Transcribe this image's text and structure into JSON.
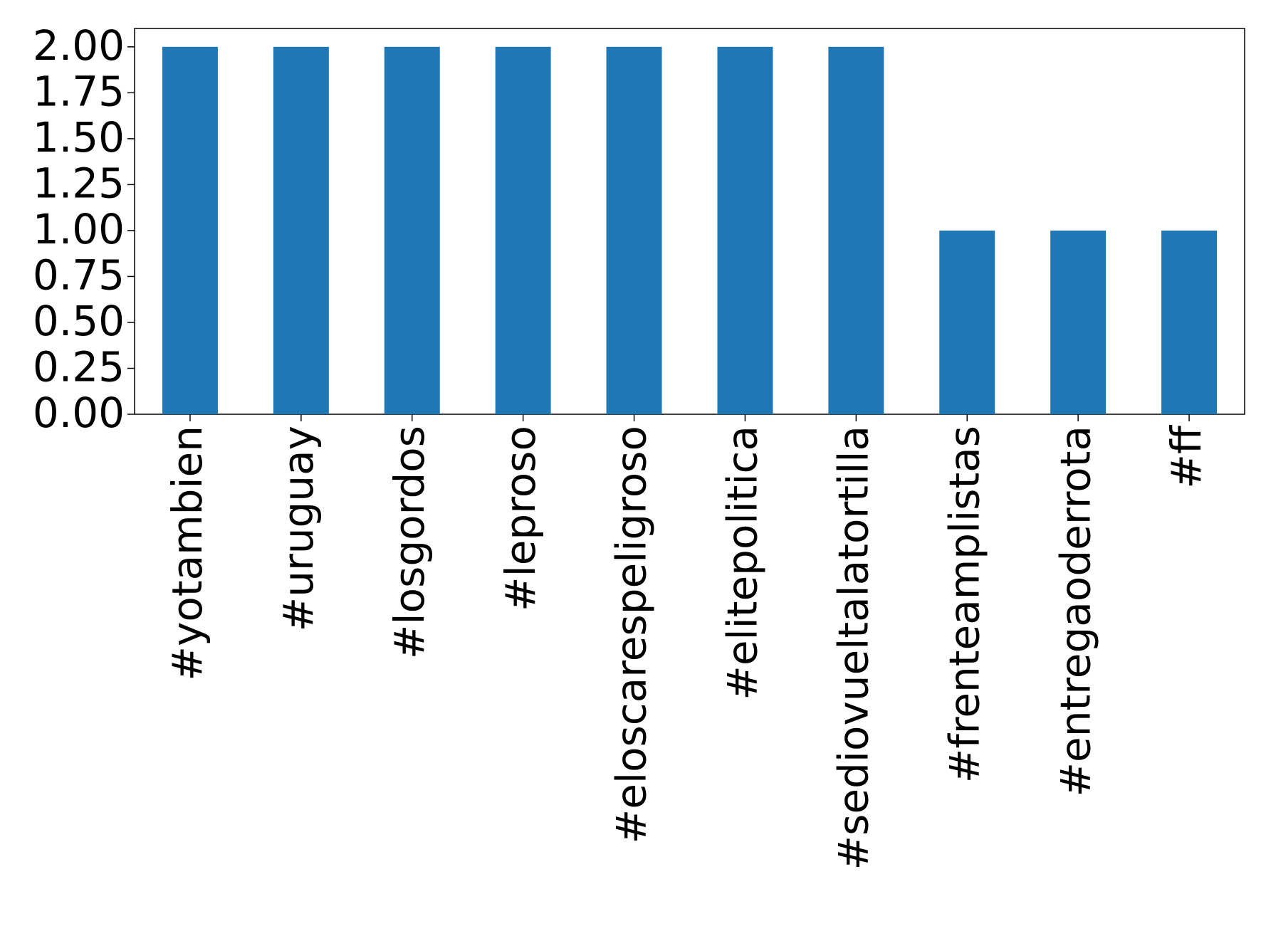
{
  "chart_data": {
    "type": "bar",
    "categories": [
      "#yotambien",
      "#uruguay",
      "#losgordos",
      "#leproso",
      "#eloscarespeligroso",
      "#elitepolitica",
      "#sediovueltalatortilla",
      "#frenteamplistas",
      "#entregaoderrota",
      "#ff"
    ],
    "values": [
      2,
      2,
      2,
      2,
      2,
      2,
      2,
      1,
      1,
      1
    ],
    "color": "#1f77b4",
    "ylim": [
      0,
      2.1
    ],
    "yticks": [
      {
        "value": 0,
        "label": "0.00"
      },
      {
        "value": 0.25,
        "label": "0.25"
      },
      {
        "value": 0.5,
        "label": "0.50"
      },
      {
        "value": 0.75,
        "label": "0.75"
      },
      {
        "value": 1,
        "label": "1.00"
      },
      {
        "value": 1.25,
        "label": "1.25"
      },
      {
        "value": 1.5,
        "label": "1.50"
      },
      {
        "value": 1.75,
        "label": "1.75"
      },
      {
        "value": 2,
        "label": "2.00"
      }
    ],
    "grid": false
  }
}
